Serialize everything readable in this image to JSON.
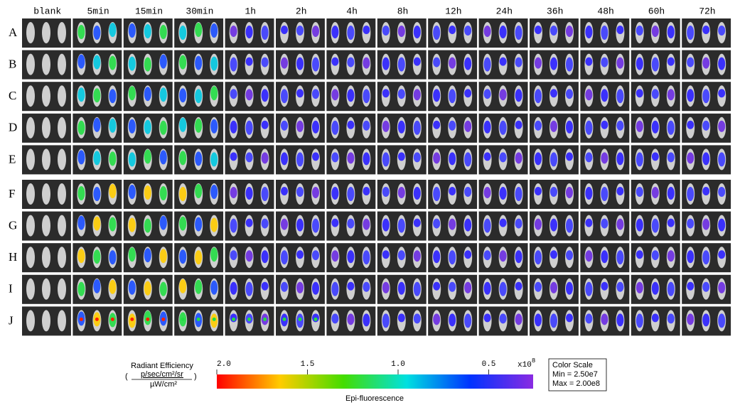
{
  "columns": [
    "blank",
    "5min",
    "15min",
    "30min",
    "1h",
    "2h",
    "4h",
    "8h",
    "12h",
    "24h",
    "36h",
    "48h",
    "60h",
    "72h"
  ],
  "rows": [
    "A",
    "B",
    "C",
    "D",
    "E",
    "F",
    "G",
    "H",
    "I",
    "J"
  ],
  "legend": {
    "title": "Radiant Efficiency",
    "unit_numerator": "p/sec/cm²/sr",
    "unit_denominator": "µW/cm²"
  },
  "colorbar": {
    "ticks": [
      "2.0",
      "1.5",
      "1.0",
      "0.5"
    ],
    "multiplier": "x10",
    "exponent": "8",
    "caption": "Epi-fluorescence"
  },
  "color_scale": {
    "title": "Color Scale",
    "min": "Min = 2.50e7",
    "max": "Max = 2.00e8"
  }
}
